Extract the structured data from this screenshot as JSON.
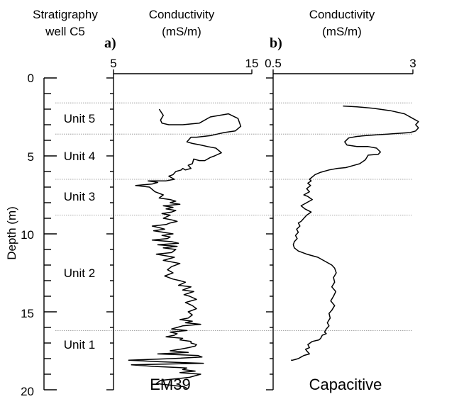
{
  "chart_data": {
    "type": "line",
    "y_axis": {
      "label": "Depth (m)",
      "lim": [
        0,
        20
      ],
      "ticks": [
        "0",
        "5",
        "10",
        "15",
        "20"
      ],
      "inverted": true
    },
    "stratigraphy": {
      "title_line1": "Stratigraphy",
      "title_line2": "well C5",
      "boundaries": [
        1.6,
        3.6,
        6.5,
        8.8,
        16.2
      ],
      "units": [
        {
          "label": "Unit 5",
          "depth": 2.6
        },
        {
          "label": "Unit 4",
          "depth": 5.0
        },
        {
          "label": "Unit 3",
          "depth": 7.6
        },
        {
          "label": "Unit 2",
          "depth": 12.5
        },
        {
          "label": "Unit 1",
          "depth": 17.1
        }
      ]
    },
    "panels": [
      {
        "id": "a",
        "panel_label": "a)",
        "title_line1": "Conductivity",
        "title_line2": "(mS/m)",
        "xlim": [
          5,
          15
        ],
        "tick_labels": [
          "5",
          "15"
        ],
        "series_label": "EM39",
        "series": {
          "x": [
            8.3,
            8.6,
            8.4,
            8.5,
            9.0,
            10.0,
            11.2,
            12.0,
            13.3,
            14.0,
            14.2,
            13.8,
            13.0,
            12.5,
            12.0,
            11.0,
            10.6,
            10.3,
            10.7,
            11.3,
            11.8,
            12.4,
            12.8,
            12.3,
            12.0,
            11.6,
            11.2,
            10.8,
            10.7,
            10.4,
            10.6,
            10.2,
            10.0,
            9.9,
            9.5,
            9.3,
            9.0,
            9.4,
            8.8,
            7.5,
            8.2,
            7.8,
            6.6,
            7.6,
            8.0,
            8.6,
            8.3,
            9.1,
            9.5,
            9.1,
            9.8,
            8.6,
            9.3,
            8.8,
            9.5,
            9.2,
            8.5,
            9.1,
            8.6,
            9.2,
            9.6,
            9.1,
            8.8,
            7.8,
            8.3,
            8.7,
            7.9,
            8.6,
            9.3,
            8.5,
            9.1,
            8.9,
            7.8,
            9.2,
            9.7,
            8.2,
            9.6,
            8.6,
            9.5,
            9.2,
            8.1,
            9.4,
            8.6,
            9.8,
            9.2,
            8.9,
            9.3,
            8.7,
            9.3,
            9.8,
            10.2,
            9.7,
            10.6,
            10.3,
            10.0,
            10.8,
            10.1,
            10.5,
            11.0,
            10.2,
            10.7,
            11.0,
            10.4,
            10.7,
            10.4,
            9.8,
            10.7,
            10.2,
            11.3,
            10.0,
            9.6,
            9.2,
            10.3,
            9.1,
            9.6,
            9.4,
            8.8,
            10.0,
            9.8,
            10.6,
            10.6,
            11.0,
            10.9,
            10.4,
            9.8,
            9.1,
            10.4,
            8.2,
            11.1,
            11.4,
            9.2,
            6.1,
            8.3,
            11.5,
            6.3,
            7.9,
            10.3,
            10.0,
            10.9,
            9.8,
            11.3,
            10.5,
            8.4,
            8.1,
            10.1,
            10.3
          ],
          "y": [
            2.0,
            2.4,
            2.7,
            2.9,
            3.0,
            3.0,
            2.9,
            2.5,
            2.3,
            2.6,
            3.1,
            3.4,
            3.5,
            3.6,
            3.7,
            3.8,
            3.8,
            4.1,
            4.2,
            4.3,
            4.4,
            4.5,
            4.8,
            5.0,
            5.1,
            5.3,
            5.3,
            5.2,
            5.5,
            5.6,
            5.8,
            5.9,
            5.8,
            5.9,
            6.0,
            6.2,
            6.3,
            6.5,
            6.6,
            6.6,
            6.7,
            6.8,
            6.9,
            7.0,
            7.3,
            7.5,
            7.7,
            7.8,
            7.9,
            8.0,
            8.1,
            8.2,
            8.3,
            8.4,
            8.5,
            8.6,
            8.7,
            8.8,
            9.0,
            9.1,
            9.2,
            9.3,
            9.4,
            9.5,
            9.6,
            9.7,
            9.8,
            9.9,
            10.0,
            10.1,
            10.2,
            10.3,
            10.4,
            10.5,
            10.6,
            10.7,
            10.8,
            10.9,
            11.0,
            11.2,
            11.3,
            11.5,
            11.7,
            11.9,
            12.1,
            12.3,
            12.5,
            12.7,
            12.9,
            13.0,
            13.1,
            13.3,
            13.4,
            13.5,
            13.6,
            13.7,
            13.9,
            14.0,
            14.2,
            14.4,
            14.6,
            14.8,
            15.0,
            15.2,
            15.4,
            15.5,
            15.6,
            15.7,
            15.8,
            15.9,
            16.0,
            16.1,
            16.2,
            16.3,
            16.4,
            16.5,
            16.6,
            16.7,
            16.8,
            16.9,
            17.0,
            17.1,
            17.2,
            17.3,
            17.4,
            17.5,
            17.6,
            17.7,
            17.8,
            17.9,
            18.0,
            18.1,
            18.2,
            18.3,
            18.4,
            18.5,
            18.6,
            18.7,
            18.8,
            18.9,
            19.0,
            19.2,
            19.4,
            19.6,
            19.8,
            19.9
          ]
        }
      },
      {
        "id": "b",
        "panel_label": "b)",
        "title_line1": "Conductivity",
        "title_line2": "(mS/m)",
        "xlim": [
          0.5,
          3
        ],
        "tick_labels": [
          "0.5",
          "3"
        ],
        "series_label": "Capacitive",
        "series": {
          "x": [
            1.75,
            2.0,
            2.3,
            2.6,
            2.85,
            3.0,
            3.1,
            3.05,
            3.1,
            3.05,
            2.95,
            2.75,
            2.55,
            2.35,
            2.15,
            2.0,
            1.85,
            1.78,
            1.82,
            2.0,
            2.2,
            2.35,
            2.42,
            2.38,
            2.2,
            2.15,
            2.05,
            1.95,
            1.8,
            1.65,
            1.5,
            1.35,
            1.25,
            1.2,
            1.15,
            1.18,
            1.12,
            1.17,
            1.1,
            1.15,
            1.05,
            1.12,
            1.2,
            1.1,
            1.0,
            1.07,
            1.18,
            1.1,
            1.05,
            1.0,
            0.95,
            0.98,
            0.92,
            0.95,
            0.9,
            0.93,
            0.88,
            0.86,
            0.88,
            0.95,
            1.1,
            1.3,
            1.45,
            1.55,
            1.6,
            1.63,
            1.58,
            1.6,
            1.55,
            1.62,
            1.58,
            1.53,
            1.6,
            1.55,
            1.5,
            1.52,
            1.47,
            1.5,
            1.45,
            1.42,
            1.45,
            1.38,
            1.35,
            1.32,
            1.2,
            1.12,
            1.15,
            1.08,
            1.1,
            1.15,
            1.05,
            1.0,
            0.95,
            0.9,
            0.85,
            0.82
          ],
          "y": [
            1.8,
            1.85,
            1.95,
            2.1,
            2.3,
            2.6,
            2.8,
            3.0,
            3.2,
            3.4,
            3.5,
            3.55,
            3.6,
            3.65,
            3.7,
            3.75,
            3.85,
            4.1,
            4.3,
            4.4,
            4.4,
            4.5,
            4.75,
            4.9,
            4.95,
            5.25,
            5.5,
            5.6,
            5.75,
            5.8,
            5.9,
            6.05,
            6.2,
            6.35,
            6.5,
            6.6,
            6.75,
            6.9,
            7.1,
            7.3,
            7.5,
            7.6,
            7.8,
            8.0,
            8.2,
            8.4,
            8.6,
            8.8,
            9.0,
            9.2,
            9.3,
            9.5,
            9.7,
            9.9,
            10.1,
            10.3,
            10.5,
            10.7,
            10.9,
            11.1,
            11.3,
            11.5,
            11.8,
            12.0,
            12.2,
            12.5,
            12.8,
            13.1,
            13.4,
            13.7,
            14.0,
            14.3,
            14.6,
            14.9,
            15.1,
            15.4,
            15.7,
            15.9,
            16.1,
            16.3,
            16.4,
            16.5,
            16.7,
            16.8,
            16.9,
            17.1,
            17.3,
            17.4,
            17.5,
            17.7,
            17.8,
            17.9,
            18.0,
            18.05,
            18.1,
            18.1
          ]
        }
      }
    ]
  }
}
